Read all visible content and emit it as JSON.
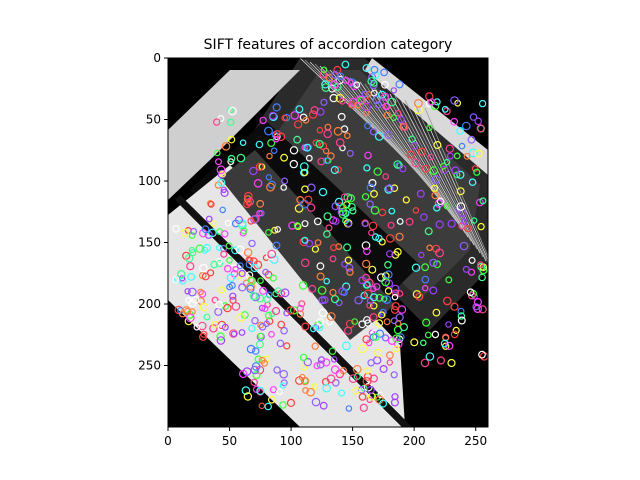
{
  "chart_data": {
    "type": "image",
    "title": "SIFT features of accordion category",
    "xlabel": "",
    "ylabel": "",
    "xlim": [
      0,
      260
    ],
    "ylim": [
      300,
      0
    ],
    "x_ticks": [
      0,
      50,
      100,
      150,
      200,
      250
    ],
    "y_ticks": [
      0,
      50,
      100,
      150,
      200,
      250
    ],
    "x_tick_labels": [
      "0",
      "50",
      "100",
      "150",
      "200",
      "250"
    ],
    "y_tick_labels": [
      "0",
      "50",
      "100",
      "150",
      "200",
      "250"
    ],
    "image_content": "grayscale accordion photo rotated 45 degrees on black background, overlaid with colored SIFT keypoint circles",
    "keypoint_colors": [
      "#ff4040",
      "#40ff40",
      "#4080ff",
      "#ff40ff",
      "#40ffff",
      "#ffff40",
      "#ff8040",
      "#a040ff",
      "#40ff90",
      "#ff4090",
      "#ffffff",
      "#9060ff"
    ],
    "keypoint_regions": [
      {
        "x": [
          120,
          190
        ],
        "y": [
          5,
          40
        ],
        "count": 45
      },
      {
        "x": [
          160,
          258
        ],
        "y": [
          30,
          250
        ],
        "count": 200
      },
      {
        "x": [
          30,
          150
        ],
        "y": [
          40,
          140
        ],
        "count": 120
      },
      {
        "x": [
          5,
          90
        ],
        "y": [
          130,
          230
        ],
        "count": 140
      },
      {
        "x": [
          60,
          190
        ],
        "y": [
          180,
          285
        ],
        "count": 160
      },
      {
        "x": [
          110,
          170
        ],
        "y": [
          110,
          200
        ],
        "count": 50
      }
    ]
  }
}
